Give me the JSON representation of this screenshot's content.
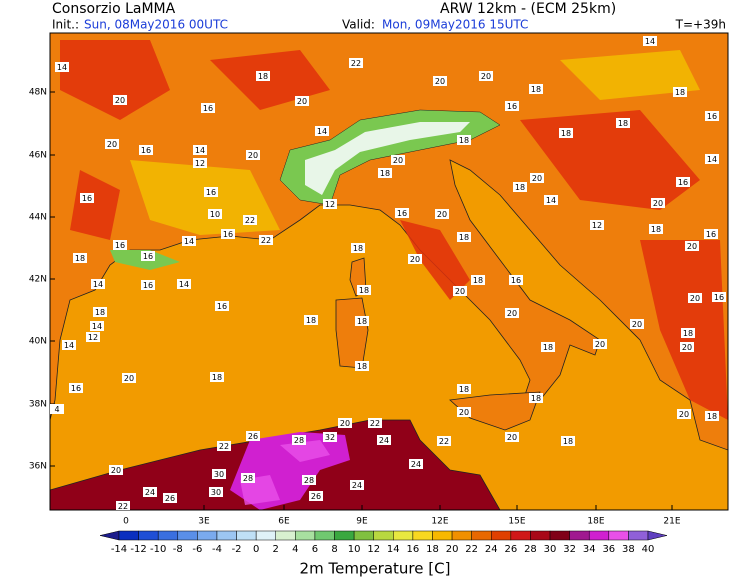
{
  "header": {
    "title": "Consorzio LaMMA",
    "init_label": "Init.:",
    "init_value": "Sun, 08May2016 00UTC",
    "model": "ARW 12km - (ECM 25km)",
    "valid_label": "Valid:",
    "valid_value": "Mon, 09May2016 15UTC",
    "step": "T=+39h"
  },
  "lat_labels": [
    "48N",
    "46N",
    "44N",
    "42N",
    "40N",
    "38N",
    "36N"
  ],
  "lon_labels": [
    "0",
    "3E",
    "6E",
    "9E",
    "12E",
    "15E",
    "18E",
    "21E"
  ],
  "colorbar": {
    "title": "2m Temperature [C]",
    "values": [
      -14,
      -12,
      -10,
      -8,
      -6,
      -4,
      -2,
      0,
      2,
      4,
      6,
      8,
      10,
      12,
      14,
      16,
      18,
      20,
      22,
      24,
      26,
      28,
      30,
      32,
      34,
      36,
      38,
      40
    ],
    "colors": [
      "#1c1c8c",
      "#0a2fbf",
      "#1f4fd6",
      "#3a6fe0",
      "#5a8fe8",
      "#7aaaee",
      "#9cc6f2",
      "#bfe0f6",
      "#e0f2f8",
      "#d8f0d0",
      "#a8e0a0",
      "#70c870",
      "#3aa840",
      "#80c040",
      "#b8d840",
      "#e8e840",
      "#f8d820",
      "#f8b800",
      "#f09000",
      "#e86800",
      "#e04000",
      "#d01818",
      "#a80818",
      "#800018",
      "#a01890",
      "#d020d0",
      "#e850e8",
      "#9060d8",
      "#6040c0"
    ]
  },
  "station_labels": [
    14,
    20,
    16,
    18,
    22,
    20,
    20,
    18,
    14,
    18,
    16,
    20,
    16,
    20,
    14,
    12,
    16,
    20,
    14,
    16,
    10,
    22,
    12,
    18,
    20,
    18,
    16,
    18,
    18,
    14,
    18,
    20,
    14,
    12,
    16,
    20,
    18,
    20,
    16,
    16,
    14,
    16,
    22,
    16,
    20,
    18,
    20,
    18,
    16,
    18,
    14,
    16,
    14,
    18,
    12,
    14,
    14,
    16,
    18,
    18,
    18,
    18,
    20,
    16,
    20,
    18,
    20,
    20,
    20,
    16,
    18,
    20,
    18,
    20,
    16,
    4,
    18,
    18,
    20,
    18,
    20,
    18,
    20,
    18,
    22,
    20,
    24,
    22,
    32,
    28,
    26,
    22,
    24,
    28,
    24,
    30,
    28,
    26,
    30,
    24,
    26,
    20,
    22
  ]
}
